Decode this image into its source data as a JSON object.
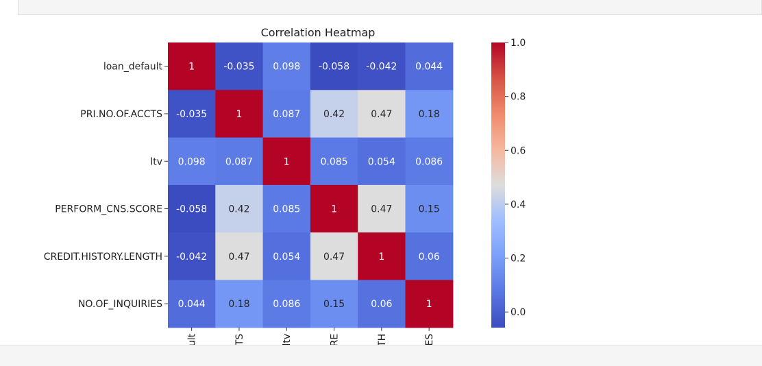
{
  "chart_data": {
    "type": "heatmap",
    "title": "Correlation Heatmap",
    "row_labels": [
      "loan_default",
      "PRI.NO.OF.ACCTS",
      "ltv",
      "PERFORM_CNS.SCORE",
      "CREDIT.HISTORY.LENGTH",
      "NO.OF_INQUIRIES"
    ],
    "col_labels_visible": [
      "efault",
      "ACCTS",
      "ltv",
      "CORE",
      "NGTH",
      "IRIES"
    ],
    "matrix": [
      [
        1,
        -0.035,
        0.098,
        -0.058,
        -0.042,
        0.044
      ],
      [
        -0.035,
        1,
        0.087,
        0.42,
        0.47,
        0.18
      ],
      [
        0.098,
        0.087,
        1,
        0.085,
        0.054,
        0.086
      ],
      [
        -0.058,
        0.42,
        0.085,
        1,
        0.47,
        0.15
      ],
      [
        -0.042,
        0.47,
        0.054,
        0.47,
        1,
        0.06
      ],
      [
        0.044,
        0.18,
        0.086,
        0.15,
        0.06,
        1
      ]
    ],
    "annotations": [
      [
        "1",
        "-0.035",
        "0.098",
        "-0.058",
        "-0.042",
        "0.044"
      ],
      [
        "-0.035",
        "1",
        "0.087",
        "0.42",
        "0.47",
        "0.18"
      ],
      [
        "0.098",
        "0.087",
        "1",
        "0.085",
        "0.054",
        "0.086"
      ],
      [
        "-0.058",
        "0.42",
        "0.085",
        "1",
        "0.47",
        "0.15"
      ],
      [
        "-0.042",
        "0.47",
        "0.054",
        "0.47",
        "1",
        "0.06"
      ],
      [
        "0.044",
        "0.18",
        "0.086",
        "0.15",
        "0.06",
        "1"
      ]
    ],
    "colormap": "coolwarm",
    "colorbar": {
      "range": [
        -0.058,
        1.0
      ],
      "ticks": [
        0.0,
        0.2,
        0.4,
        0.6,
        0.8,
        1.0
      ],
      "tick_labels": [
        "0.0",
        "0.2",
        "0.4",
        "0.6",
        "0.8",
        "1.0"
      ]
    }
  }
}
